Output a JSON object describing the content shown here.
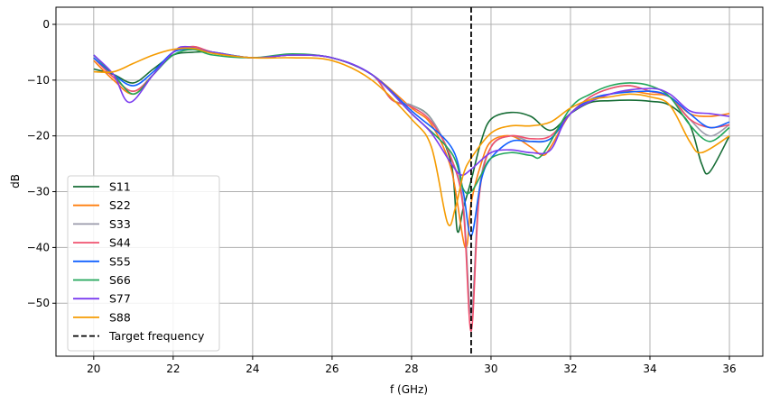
{
  "chart_data": {
    "type": "line",
    "title": "",
    "xlabel": "f (GHz)",
    "ylabel": "dB",
    "xlim": [
      19.05,
      36.84
    ],
    "ylim": [
      -59.5,
      3.07
    ],
    "xticks": [
      20,
      22,
      24,
      26,
      28,
      30,
      32,
      34,
      36
    ],
    "yticks": [
      0,
      -10,
      -20,
      -30,
      -40,
      -50
    ],
    "grid": true,
    "legend_placement": "lower-left",
    "target_frequency": {
      "name": "Target frequency",
      "x": 29.5,
      "color": "#000000",
      "style": "dashed"
    },
    "series": [
      {
        "name": "S11",
        "color": "#176d36",
        "x": [
          20,
          20.5,
          21,
          21.5,
          22,
          22.5,
          23,
          24,
          25,
          26,
          27,
          27.5,
          28,
          28.5,
          29,
          29.15,
          29.3,
          29.5,
          29.75,
          30,
          30.5,
          31,
          31.5,
          32,
          32.5,
          33,
          33.5,
          34,
          34.5,
          35,
          35.3,
          35.5,
          36
        ],
        "y": [
          -8,
          -9,
          -10.5,
          -8,
          -5.5,
          -5,
          -5,
          -6,
          -5.5,
          -6,
          -9,
          -13.5,
          -14.5,
          -17,
          -25,
          -37,
          -33,
          -28,
          -21,
          -17,
          -15.8,
          -16.5,
          -19,
          -16,
          -14,
          -13.7,
          -13.6,
          -13.8,
          -14.5,
          -18,
          -25,
          -26.5,
          -20
        ]
      },
      {
        "name": "S22",
        "color": "#ff7f0e",
        "x": [
          20,
          20.5,
          21,
          21.5,
          22,
          22.5,
          23,
          24,
          25,
          26,
          27,
          28,
          28.5,
          29,
          29.35,
          29.5,
          29.75,
          30,
          30.5,
          31,
          31.3,
          31.5,
          32,
          32.5,
          33,
          33.5,
          34,
          34.5,
          35,
          35.5,
          36
        ],
        "y": [
          -6.5,
          -10,
          -12.5,
          -9,
          -5,
          -4,
          -5,
          -6,
          -5.5,
          -6,
          -9,
          -15,
          -18,
          -26,
          -40,
          -32,
          -25,
          -21,
          -20,
          -22,
          -23.5,
          -22,
          -16,
          -13.5,
          -12.5,
          -12,
          -12.5,
          -13,
          -16,
          -16.5,
          -16
        ]
      },
      {
        "name": "S33",
        "color": "#9a9aaa",
        "x": [
          20,
          20.5,
          21,
          21.5,
          22,
          22.5,
          23,
          24,
          25,
          26,
          27,
          27.5,
          28,
          28.5,
          29,
          29.3,
          29.5,
          29.7,
          30,
          30.5,
          31,
          31.5,
          32,
          32.5,
          33,
          33.5,
          34,
          34.5,
          35,
          35.5,
          36
        ],
        "y": [
          -6,
          -9.5,
          -12,
          -9,
          -5,
          -4,
          -5,
          -6,
          -5.5,
          -6,
          -9,
          -13.5,
          -14.5,
          -17,
          -24,
          -32,
          -52,
          -30,
          -22,
          -20,
          -21,
          -20.5,
          -16,
          -13,
          -11.5,
          -11,
          -12,
          -13,
          -17,
          -20,
          -18
        ]
      },
      {
        "name": "S44",
        "color": "#f0506e",
        "x": [
          20,
          20.5,
          21,
          21.5,
          22,
          22.5,
          23,
          24,
          25,
          26,
          27,
          27.5,
          28,
          28.5,
          29,
          29.3,
          29.5,
          29.7,
          30,
          30.5,
          31,
          31.5,
          32,
          32.5,
          33,
          33.5,
          34,
          34.5,
          35,
          35.5,
          36
        ],
        "y": [
          -6,
          -9.5,
          -12,
          -9,
          -5,
          -4,
          -5,
          -6,
          -5.5,
          -6,
          -9,
          -13.5,
          -14.8,
          -17.5,
          -24,
          -33,
          -55,
          -31,
          -22,
          -20,
          -20.5,
          -20,
          -16,
          -13,
          -11.5,
          -11,
          -12,
          -13,
          -17,
          -18.5,
          -18
        ]
      },
      {
        "name": "S55",
        "color": "#1060ff",
        "x": [
          20,
          20.5,
          21,
          21.5,
          22,
          22.5,
          23,
          24,
          25,
          26,
          27,
          28,
          29,
          29.3,
          29.5,
          29.75,
          30,
          30.5,
          31,
          31.5,
          32,
          32.5,
          33,
          34,
          34.5,
          35,
          35.5,
          36
        ],
        "y": [
          -6,
          -9,
          -11,
          -8.5,
          -5,
          -4.5,
          -5,
          -6,
          -5.5,
          -6,
          -9,
          -15.5,
          -22,
          -30,
          -38,
          -28,
          -24,
          -21,
          -21,
          -20.5,
          -16,
          -13.5,
          -12.5,
          -12,
          -13,
          -16,
          -18.5,
          -17.5
        ]
      },
      {
        "name": "S66",
        "color": "#22a65a",
        "x": [
          20,
          20.5,
          21,
          21.5,
          22,
          22.5,
          23,
          24,
          25,
          26,
          27,
          28,
          29,
          29.3,
          29.5,
          29.75,
          30,
          30.5,
          31,
          31.3,
          32,
          32.5,
          33,
          33.5,
          34,
          34.5,
          35,
          35.5,
          36
        ],
        "y": [
          -5.5,
          -9,
          -12.5,
          -9,
          -5.5,
          -4.5,
          -5.5,
          -6,
          -5.3,
          -6,
          -9,
          -16,
          -23,
          -29.5,
          -30,
          -27,
          -24,
          -23,
          -23.5,
          -23.3,
          -15,
          -12.5,
          -11,
          -10.5,
          -11,
          -13,
          -18,
          -21,
          -18.5
        ]
      },
      {
        "name": "S77",
        "color": "#7b3cf0",
        "x": [
          20,
          20.5,
          20.9,
          21.5,
          22,
          22.3,
          23,
          24,
          25,
          26,
          27,
          28,
          28.5,
          29,
          29.25,
          29.5,
          30,
          30.5,
          31,
          31.5,
          32,
          33,
          34,
          34.5,
          35,
          35.5,
          36
        ],
        "y": [
          -5.5,
          -9,
          -14,
          -9,
          -5,
          -4,
          -5,
          -6,
          -5.5,
          -6,
          -9,
          -16,
          -19.5,
          -25,
          -27,
          -26,
          -23,
          -22.5,
          -23,
          -22.5,
          -16,
          -12.5,
          -11.5,
          -12.5,
          -15.5,
          -16,
          -16.5
        ]
      },
      {
        "name": "S88",
        "color": "#f59b00",
        "x": [
          20,
          20.5,
          21,
          21.5,
          22,
          22.5,
          23,
          24,
          25,
          26,
          27,
          28,
          28.5,
          28.9,
          29.1,
          29.3,
          29.5,
          30,
          30.5,
          31,
          31.5,
          32,
          32.5,
          33,
          33.5,
          34,
          34.5,
          35,
          35.3,
          36
        ],
        "y": [
          -8.5,
          -8.5,
          -7,
          -5.5,
          -4.5,
          -4.3,
          -5.2,
          -6,
          -6,
          -6.5,
          -10,
          -17,
          -22,
          -35.5,
          -33,
          -27,
          -24,
          -19.5,
          -18.2,
          -18.2,
          -17.5,
          -15,
          -13.5,
          -13,
          -12.5,
          -13,
          -14.5,
          -21,
          -23,
          -20
        ]
      }
    ]
  }
}
